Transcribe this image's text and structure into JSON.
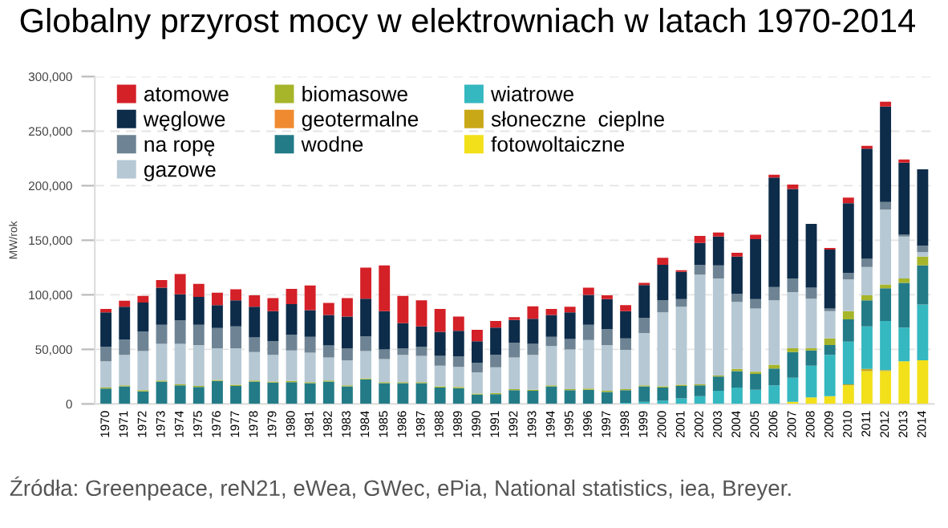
{
  "chart_data": {
    "type": "bar",
    "stacked": true,
    "title": "Globalny przyrost mocy w elektrowniach w latach 1970-2014",
    "ylabel": "MW/rok",
    "categories": [
      "1970",
      "1971",
      "1972",
      "1973",
      "1974",
      "1975",
      "1976",
      "1977",
      "1978",
      "1979",
      "1980",
      "1981",
      "1982",
      "1983",
      "1984",
      "1985",
      "1986",
      "1987",
      "1988",
      "1989",
      "1990",
      "1991",
      "1992",
      "1993",
      "1994",
      "1995",
      "1996",
      "1997",
      "1998",
      "1999",
      "2000",
      "2001",
      "2002",
      "2003",
      "2004",
      "2005",
      "2006",
      "2007",
      "2008",
      "2009",
      "2010",
      "2011",
      "2012",
      "2013",
      "2014"
    ],
    "ylim": [
      0,
      300000
    ],
    "yticks": [
      {
        "value": 0,
        "label": "0"
      },
      {
        "value": 50000,
        "label": "50,000"
      },
      {
        "value": 100000,
        "label": "100,000"
      },
      {
        "value": 150000,
        "label": "150,000"
      },
      {
        "value": 200000,
        "label": "200,000"
      },
      {
        "value": 250000,
        "label": "250,000"
      },
      {
        "value": 300000,
        "label": "300,000"
      }
    ],
    "grid": "y",
    "legend": "top left",
    "series": [
      {
        "name": "fotowoltaiczne",
        "color": "#f2e01a",
        "values": [
          0,
          0,
          0,
          0,
          0,
          0,
          0,
          0,
          0,
          0,
          0,
          0,
          0,
          0,
          0,
          0,
          0,
          0,
          0,
          0,
          0,
          0,
          0,
          0,
          0,
          0,
          0,
          0,
          0,
          0,
          0,
          0,
          0,
          0,
          0,
          0,
          0,
          2000,
          6000,
          7000,
          17000,
          30000,
          30000,
          39000,
          40000
        ]
      },
      {
        "name": "słoneczne  cieplne",
        "color": "#c9a818",
        "values": [
          0,
          0,
          0,
          0,
          0,
          0,
          0,
          0,
          0,
          0,
          0,
          0,
          0,
          0,
          0,
          0,
          0,
          0,
          0,
          0,
          0,
          0,
          0,
          0,
          0,
          0,
          0,
          0,
          0,
          0,
          0,
          0,
          0,
          0,
          0,
          0,
          0,
          0,
          0,
          0,
          1000,
          2000,
          1000,
          0,
          0
        ]
      },
      {
        "name": "wiatrowe",
        "color": "#35b8c0",
        "values": [
          0,
          0,
          0,
          0,
          0,
          0,
          0,
          0,
          0,
          0,
          0,
          0,
          0,
          0,
          0,
          0,
          0,
          0,
          0,
          0,
          0,
          0,
          0,
          0,
          0,
          0,
          0,
          0,
          1000,
          2000,
          3000,
          5000,
          7000,
          12000,
          15000,
          13000,
          17000,
          22000,
          29000,
          38000,
          39000,
          39000,
          45000,
          31000,
          51000
        ]
      },
      {
        "name": "wodne",
        "color": "#237b87",
        "values": [
          14000,
          16000,
          11500,
          20500,
          17000,
          15500,
          21000,
          16500,
          20500,
          19500,
          20000,
          19000,
          20500,
          16000,
          22500,
          19000,
          19000,
          19000,
          15000,
          14500,
          8500,
          9000,
          12500,
          12000,
          16000,
          12500,
          13000,
          11000,
          11500,
          14000,
          12000,
          11500,
          10000,
          13000,
          15000,
          14500,
          15500,
          23500,
          14000,
          9000,
          20500,
          24000,
          30000,
          41000,
          36000
        ]
      },
      {
        "name": "geotermalne",
        "color": "#f08a30",
        "values": [
          0,
          0,
          0,
          0,
          0,
          0,
          0,
          0,
          0,
          0,
          0,
          0,
          0,
          0,
          0,
          0,
          0,
          0,
          0,
          0,
          0,
          0,
          0,
          0,
          0,
          0,
          0,
          0,
          0,
          0,
          0,
          0,
          0,
          0,
          0,
          0,
          0,
          0,
          0,
          0,
          0,
          0,
          0,
          0,
          0
        ]
      },
      {
        "name": "biomasowe",
        "color": "#a6b52a",
        "values": [
          1000,
          1000,
          1000,
          1000,
          1000,
          1000,
          1000,
          1000,
          1000,
          1000,
          1000,
          1000,
          1000,
          1000,
          1000,
          1000,
          1000,
          1000,
          1000,
          1000,
          1000,
          1000,
          1000,
          1000,
          1000,
          1000,
          1000,
          1000,
          1000,
          1000,
          1000,
          1000,
          1000,
          1000,
          2000,
          2000,
          3500,
          3500,
          2000,
          6000,
          7500,
          4500,
          3500,
          4000,
          8000
        ]
      },
      {
        "name": "gazowe",
        "color": "#b6c8d3",
        "values": [
          24000,
          28000,
          36000,
          33500,
          37000,
          37500,
          29000,
          33500,
          26000,
          24500,
          28000,
          27000,
          21000,
          23000,
          25000,
          21000,
          25000,
          24000,
          19000,
          18500,
          19500,
          23500,
          29000,
          32000,
          36000,
          36500,
          44500,
          42000,
          36000,
          48000,
          68000,
          71500,
          100500,
          89000,
          61500,
          58000,
          59000,
          51500,
          45500,
          25000,
          29000,
          26000,
          68500,
          38500,
          4000
        ]
      },
      {
        "name": "na ropę",
        "color": "#6e8494",
        "values": [
          13500,
          14000,
          18000,
          17500,
          21500,
          18500,
          18500,
          20000,
          13500,
          12500,
          14500,
          14500,
          11000,
          11000,
          13500,
          9000,
          6000,
          8500,
          9000,
          9500,
          8500,
          11500,
          13500,
          10000,
          8500,
          9500,
          14000,
          14500,
          10500,
          14000,
          11000,
          7000,
          9000,
          12000,
          7500,
          8500,
          12000,
          12500,
          10000,
          2500,
          6000,
          7500,
          7000,
          1500,
          6000
        ]
      },
      {
        "name": "węglowe",
        "color": "#0d2c4a",
        "values": [
          31500,
          30000,
          26500,
          34000,
          24000,
          25500,
          21000,
          24000,
          28000,
          27500,
          28000,
          24500,
          28000,
          29000,
          34500,
          35000,
          23000,
          18500,
          22000,
          23500,
          20000,
          25000,
          21000,
          23000,
          20000,
          24500,
          27500,
          27500,
          25000,
          30000,
          32500,
          25000,
          20000,
          26500,
          34000,
          55000,
          100500,
          82000,
          58500,
          54000,
          64000,
          101000,
          87500,
          66000,
          70000
        ]
      },
      {
        "name": "atomowe",
        "color": "#d42027",
        "values": [
          3000,
          5500,
          6000,
          7000,
          18500,
          12000,
          11500,
          10000,
          10500,
          12000,
          14000,
          22500,
          11000,
          17000,
          28500,
          42000,
          25000,
          24000,
          21000,
          13000,
          10500,
          6000,
          2500,
          11500,
          5500,
          5000,
          6500,
          3500,
          5500,
          2000,
          6500,
          1500,
          6500,
          3500,
          3500,
          4000,
          2500,
          4000,
          0,
          1500,
          5000,
          2500,
          4500,
          3000,
          0
        ]
      }
    ],
    "annotations": [
      "Źródła: Greenpeace, reN21, eWea, GWec, ePia, National statistics, iea, Breyer."
    ]
  }
}
